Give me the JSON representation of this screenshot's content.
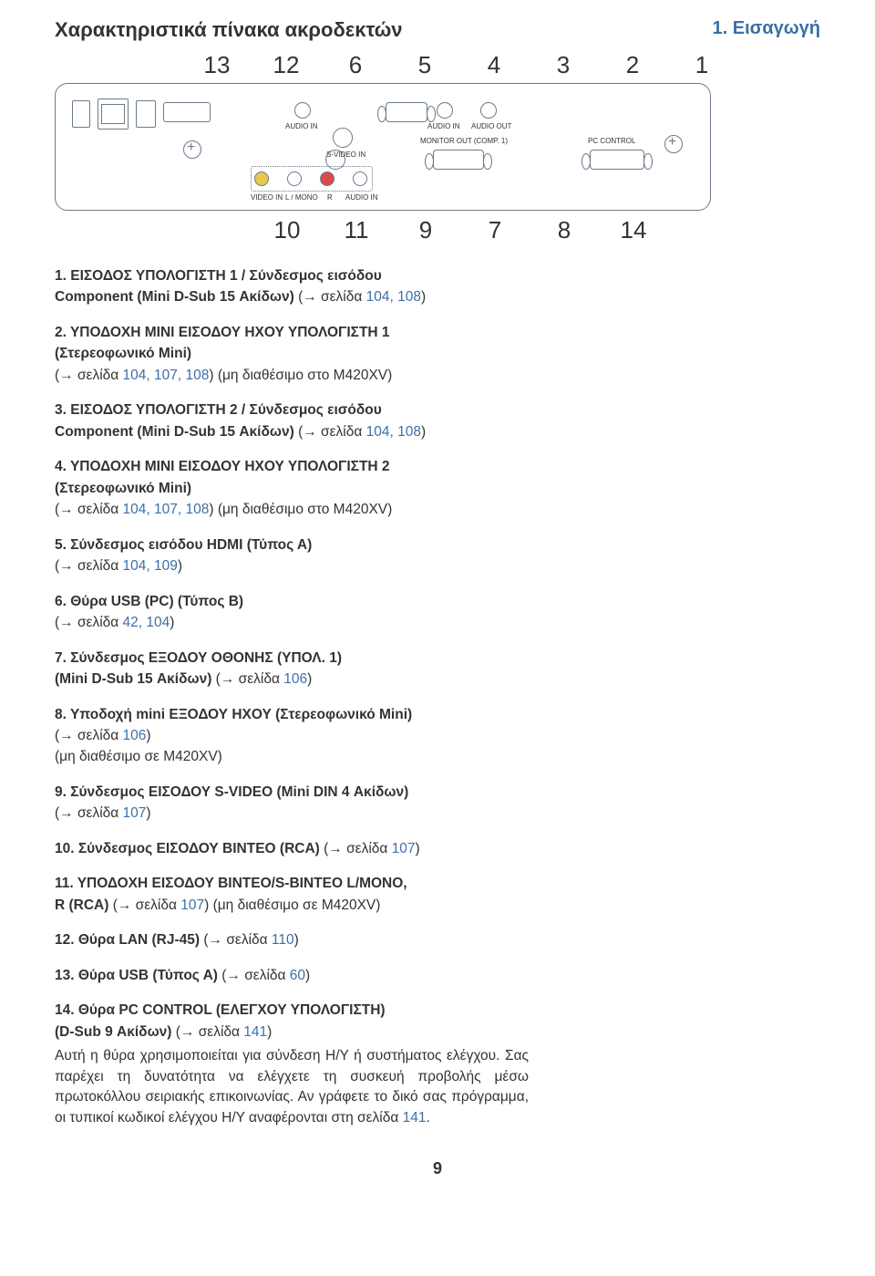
{
  "chapter": "1. Εισαγωγή",
  "section_title": "Χαρακτηριστικά πίνακα ακροδεκτών",
  "page_number": "9",
  "diagram": {
    "top_numbers": [
      "13",
      "12",
      "6",
      "5",
      "4",
      "3",
      "2",
      "1"
    ],
    "bottom_numbers": [
      "10",
      "11",
      "9",
      "7",
      "8",
      "14"
    ],
    "labels": {
      "audio_in_1": "AUDIO IN",
      "audio_in_2": "AUDIO IN",
      "audio_out": "AUDIO OUT",
      "s_video": "S-VIDEO IN",
      "monitor_out": "MONITOR OUT (COMP. 1)",
      "pc_control": "PC  CONTROL",
      "video_in": "VIDEO IN",
      "l_mono": "L / MONO",
      "r": "R",
      "aud_in_3": "AUDIO IN"
    },
    "colors": {
      "stroke": "#6a7a8a",
      "rca_yellow": "#e8c94a",
      "rca_red": "#d94a4a",
      "link_blue": "#3b6fa8"
    }
  },
  "items": [
    {
      "n": "1.",
      "bold": "ΕΙΣΟΔΟΣ ΥΠΟΛΟΓΙΣΤΗ 1 / Σύνδεσμος εισόδου",
      "bold2": "Component (Mini D-Sub 15 Ακίδων)",
      "tail": " (→ σελίδα ",
      "pages": "104, 108",
      "tail2": ")"
    },
    {
      "n": "2.",
      "bold": "ΥΠΟΔΟΧΗ ΜΙΝΙ ΕΙΣΟΔΟΥ ΗΧΟΥ ΥΠΟΛΟΓΙΣΤΗ 1",
      "bold2": "(Στερεοφωνικό Mini)",
      "sub_open": "(→ σελίδα ",
      "pages": "104, 107, 108",
      "sub_close": ") (μη διαθέσιμο στο M420XV)"
    },
    {
      "n": "3.",
      "bold": "ΕΙΣΟΔΟΣ ΥΠΟΛΟΓΙΣΤΗ 2 / Σύνδεσμος εισόδου",
      "bold2": "Component (Mini D-Sub 15 Ακίδων)",
      "tail": " (→ σελίδα ",
      "pages": "104, 108",
      "tail2": ")"
    },
    {
      "n": "4.",
      "bold": "ΥΠΟΔΟΧΗ ΜΙΝΙ ΕΙΣΟΔΟΥ ΗΧΟΥ ΥΠΟΛΟΓΙΣΤΗ 2",
      "bold2": "(Στερεοφωνικό Mini)",
      "sub_open": "(→ σελίδα ",
      "pages": "104, 107, 108",
      "sub_close": ") (μη διαθέσιμο στο M420XV)"
    },
    {
      "n": "5.",
      "bold": "Σύνδεσμος εισόδου HDMI (Τύπος Α)",
      "sub_open": "(→ σελίδα ",
      "pages": "104, 109",
      "sub_close": ")"
    },
    {
      "n": "6.",
      "bold": "Θύρα USB (PC) (Τύπος Β)",
      "sub_open": "(→ σελίδα ",
      "pages": "42, 104",
      "sub_close": ")"
    },
    {
      "n": "7.",
      "bold": "Σύνδεσμος ΕΞΟΔΟΥ ΟΘΟΝΗΣ (ΥΠΟΛ. 1)",
      "bold2": "(Mini D-Sub 15 Ακίδων)",
      "tail": " (→ σελίδα ",
      "pages": "106",
      "tail2": ")"
    },
    {
      "n": "8.",
      "bold": "Υποδοχή mini ΕΞΟΔΟΥ ΗΧΟΥ (Στερεοφωνικό Mini)",
      "sub_open": "(→ σελίδα ",
      "pages": "106",
      "sub_close": ")",
      "extra": "(μη διαθέσιμο σε M420XV)"
    },
    {
      "n": "9.",
      "bold": "Σύνδεσμος ΕΙΣΟΔΟΥ S-VIDEO (Mini DIN 4 Ακίδων)",
      "sub_open": "(→ σελίδα ",
      "pages": "107",
      "sub_close": ")"
    },
    {
      "n": "10.",
      "bold": "Σύνδεσμος ΕΙΣΟΔΟΥ ΒΙΝΤΕΟ (RCA)",
      "tail": " (→ σελίδα ",
      "pages": "107",
      "tail2": ")"
    },
    {
      "n": "11.",
      "bold": "ΥΠΟΔΟΧΗ ΕΙΣΟΔΟΥ ΒΙΝΤΕΟ/S-ΒΙΝΤΕΟ L/MONO,",
      "bold2": "R (RCA)",
      "tail": " (→ σελίδα ",
      "pages": "107",
      "tail2": ") (μη διαθέσιμο σε M420XV)"
    },
    {
      "n": "12.",
      "bold": "Θύρα LAN (RJ-45)",
      "tail": " (→ σελίδα ",
      "pages": "110",
      "tail2": ")"
    },
    {
      "n": "13.",
      "bold": "Θύρα USB (Τύπος Α)",
      "tail": " (→ σελίδα ",
      "pages": "60",
      "tail2": ")"
    },
    {
      "n": "14.",
      "bold": "Θύρα PC CONTROL (ΕΛΕΓΧΟΥ ΥΠΟΛΟΓΙΣΤΗ)",
      "bold2": "(D-Sub 9 Ακίδων)",
      "tail": " (→ σελίδα ",
      "pages": "141",
      "tail2": ")",
      "para": "Αυτή η θύρα χρησιμοποιείται για σύνδεση Η/Υ ή συστήματος ελέγχου. Σας παρέχει τη δυνατότητα να ελέγχετε τη συσκευή προβολής μέσω πρωτοκόλλου σειριακής επικοινωνίας. Αν γράφετε το δικό σας πρόγραμμα, οι τυπικοί κωδικοί ελέγχου Η/Υ αναφέρονται στη σελίδα ",
      "para_page": "141",
      "para_end": "."
    }
  ]
}
